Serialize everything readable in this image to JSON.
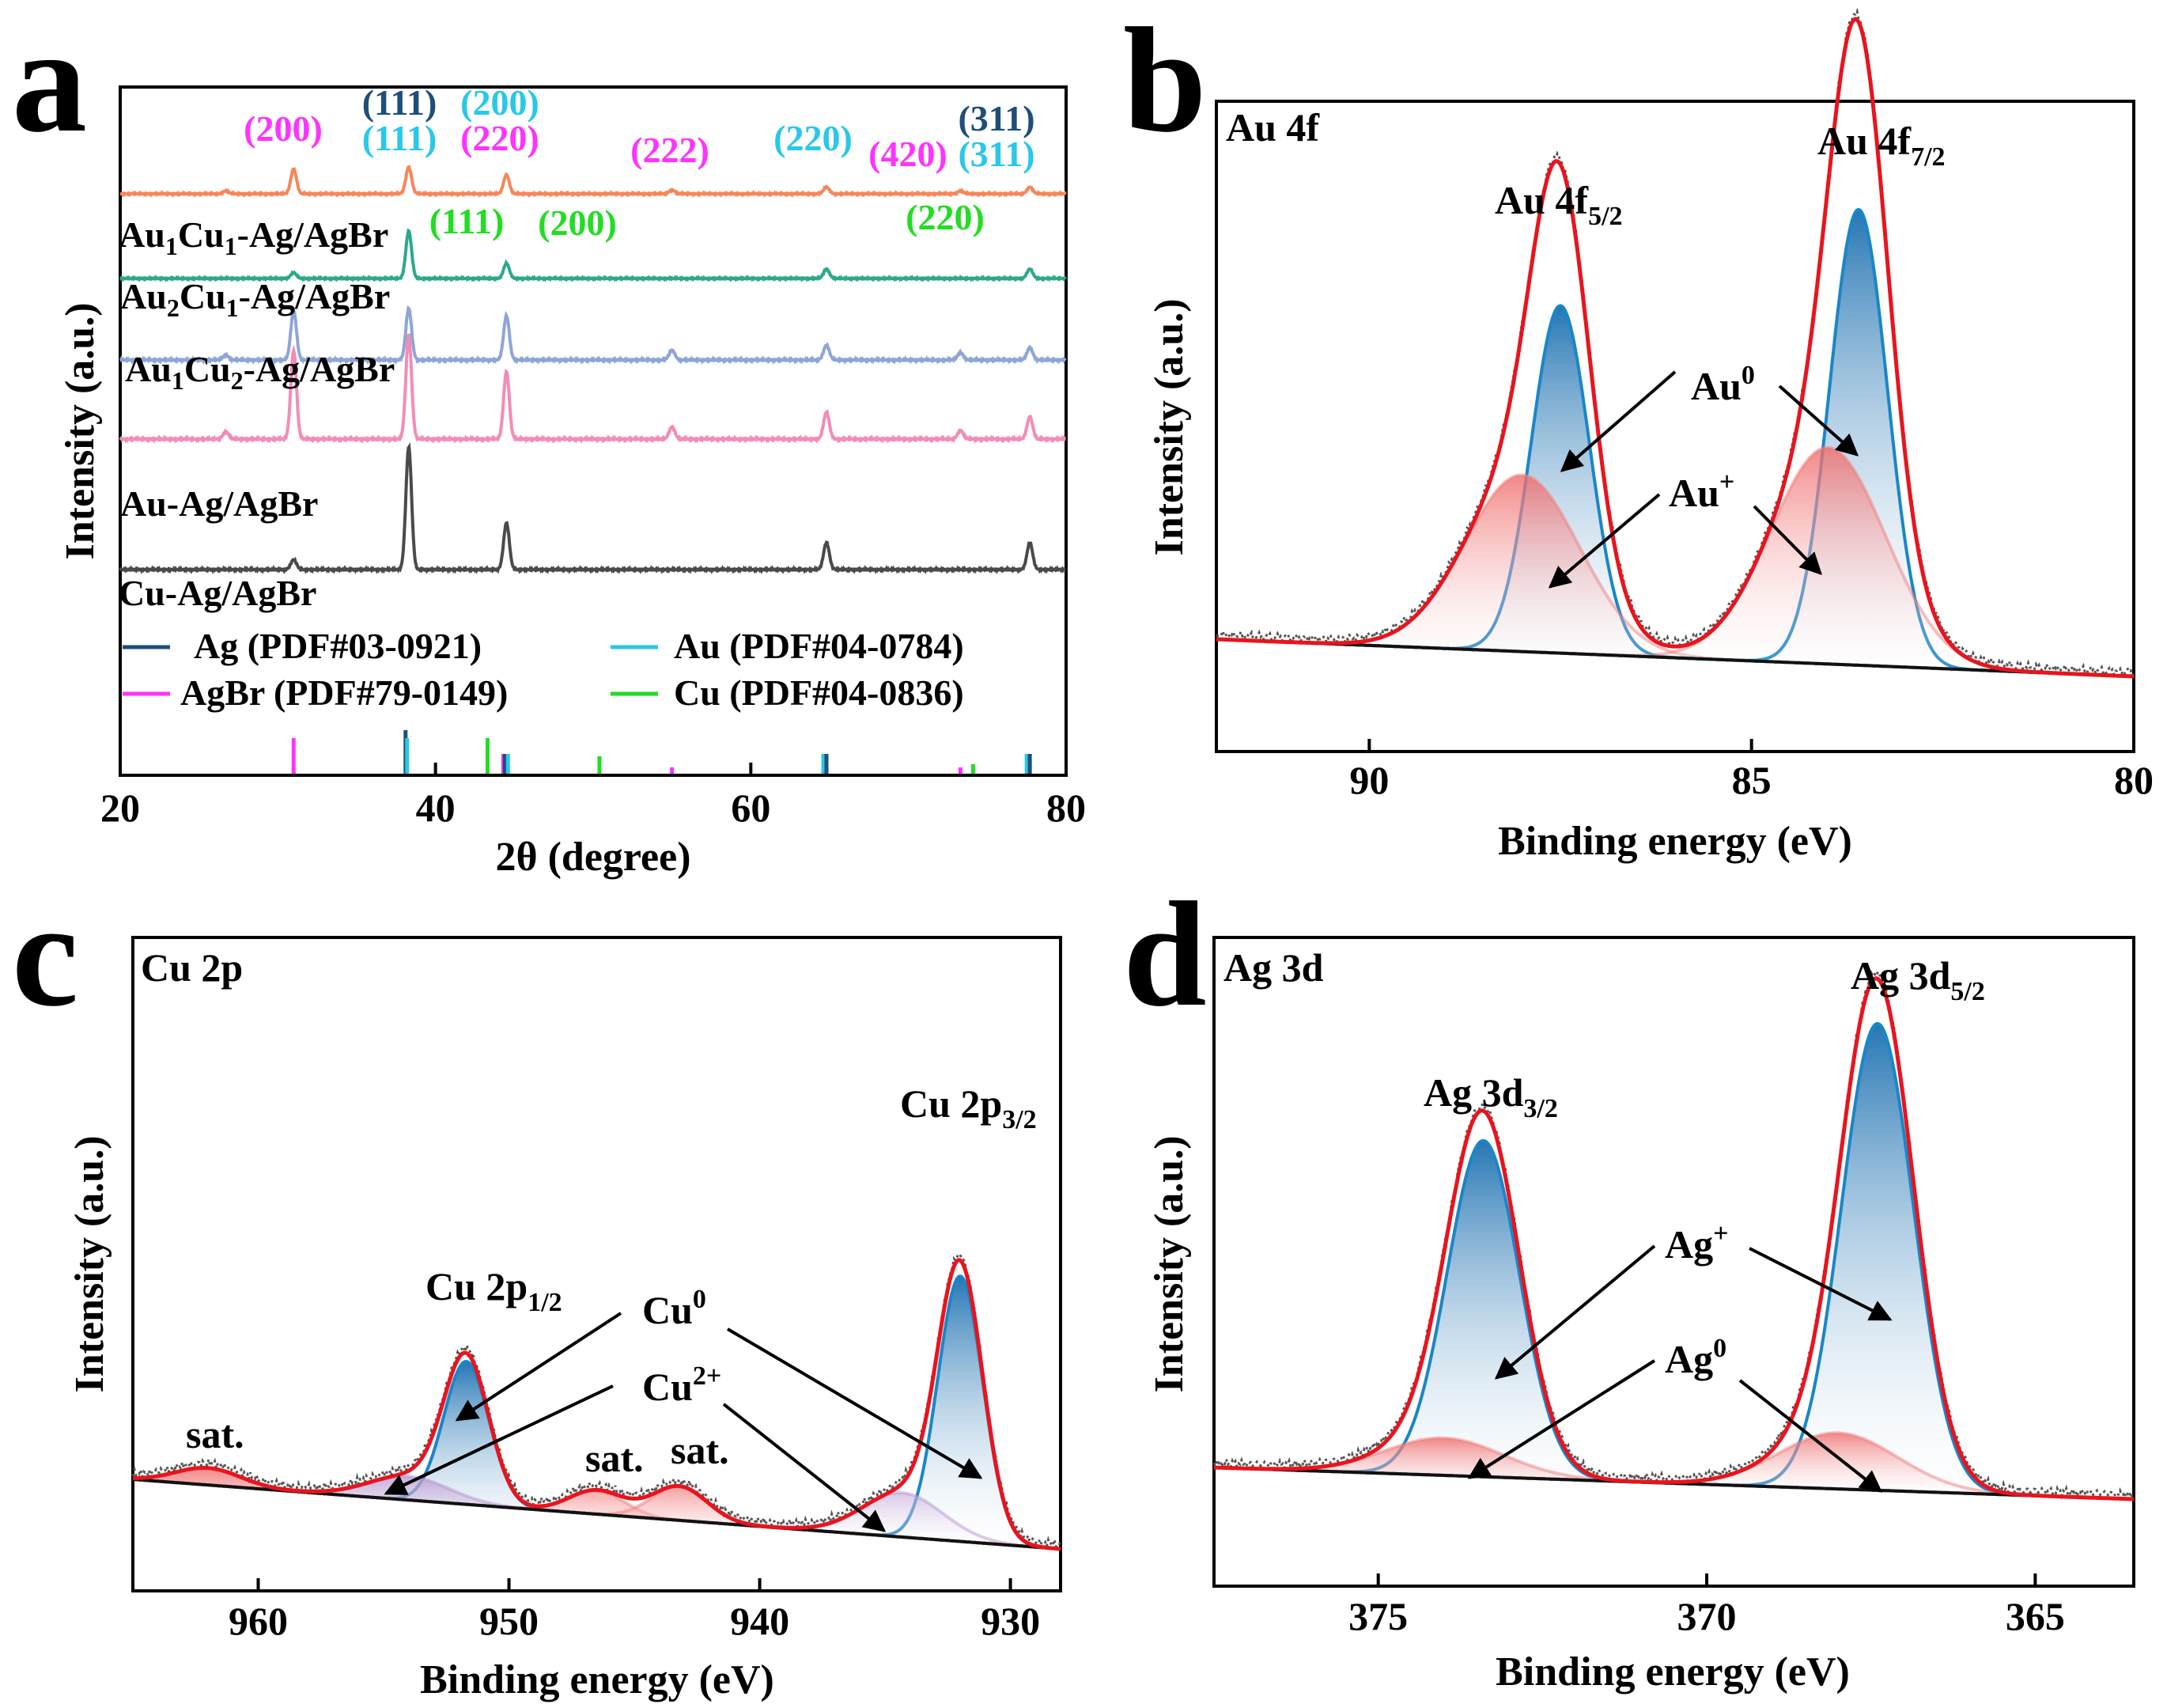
{
  "panels": {
    "a": {
      "letter": "a"
    },
    "b": {
      "letter": "b"
    },
    "c": {
      "letter": "c"
    },
    "d": {
      "letter": "d"
    }
  },
  "chart_data": [
    {
      "panel": "a",
      "type": "line",
      "title": "",
      "xlabel": "2θ (degree)",
      "ylabel": "Intensity (a.u.)",
      "xlim": [
        20,
        80
      ],
      "xticks": [
        "20",
        "40",
        "60",
        "80"
      ],
      "stacked_offsets": true,
      "series": [
        {
          "name": "Cu-Ag/AgBr",
          "color": "#4a4a4a",
          "peaks": [
            [
              31.0,
              0.08
            ],
            [
              38.3,
              1.0
            ],
            [
              44.5,
              0.38
            ],
            [
              64.8,
              0.22
            ],
            [
              77.7,
              0.22
            ]
          ]
        },
        {
          "name": "Au-Ag/AgBr",
          "color": "#f28cb8",
          "peaks": [
            [
              26.7,
              0.06
            ],
            [
              31.0,
              0.72
            ],
            [
              38.3,
              0.85
            ],
            [
              44.5,
              0.55
            ],
            [
              55.0,
              0.1
            ],
            [
              64.8,
              0.22
            ],
            [
              73.3,
              0.07
            ],
            [
              77.7,
              0.18
            ]
          ]
        },
        {
          "name": "Au1Cu2-Ag/AgBr",
          "color": "#8ea6d6",
          "peaks": [
            [
              26.7,
              0.04
            ],
            [
              31.0,
              0.4
            ],
            [
              38.3,
              0.42
            ],
            [
              44.5,
              0.36
            ],
            [
              55.0,
              0.08
            ],
            [
              64.8,
              0.12
            ],
            [
              73.3,
              0.06
            ],
            [
              77.7,
              0.1
            ]
          ]
        },
        {
          "name": "Au2Cu1-Ag/AgBr",
          "color": "#2aaa8a",
          "peaks": [
            [
              31.0,
              0.06
            ],
            [
              38.3,
              0.5
            ],
            [
              44.5,
              0.16
            ],
            [
              64.8,
              0.1
            ],
            [
              77.7,
              0.1
            ]
          ]
        },
        {
          "name": "Au1Cu1-Ag/AgBr",
          "color": "#f5875a",
          "peaks": [
            [
              26.7,
              0.03
            ],
            [
              31.0,
              0.26
            ],
            [
              38.3,
              0.28
            ],
            [
              44.5,
              0.2
            ],
            [
              55.0,
              0.04
            ],
            [
              64.8,
              0.07
            ],
            [
              73.3,
              0.03
            ],
            [
              77.7,
              0.07
            ]
          ]
        }
      ],
      "reference_legend": [
        {
          "label": "Ag (PDF#03-0921)",
          "color": "#1f4e79"
        },
        {
          "label": "Au (PDF#04-0784)",
          "color": "#29c8e8"
        },
        {
          "label": "AgBr (PDF#79-0149)",
          "color": "#ff33ff"
        },
        {
          "label": "Cu (PDF#04-0836)",
          "color": "#22dd22"
        }
      ],
      "reference_lines": [
        {
          "phase": "AgBr",
          "x": 31.0,
          "h": 0.45
        },
        {
          "phase": "Ag",
          "x": 38.1,
          "h": 0.55
        },
        {
          "phase": "Au",
          "x": 38.2,
          "h": 0.45
        },
        {
          "phase": "Cu",
          "x": 43.3,
          "h": 0.45
        },
        {
          "phase": "AgBr",
          "x": 44.3,
          "h": 0.25
        },
        {
          "phase": "Ag",
          "x": 44.4,
          "h": 0.25
        },
        {
          "phase": "Au",
          "x": 44.6,
          "h": 0.25
        },
        {
          "phase": "Cu",
          "x": 50.4,
          "h": 0.22
        },
        {
          "phase": "AgBr",
          "x": 55.0,
          "h": 0.08
        },
        {
          "phase": "Au",
          "x": 64.6,
          "h": 0.25
        },
        {
          "phase": "Ag",
          "x": 64.8,
          "h": 0.25
        },
        {
          "phase": "AgBr",
          "x": 73.3,
          "h": 0.08
        },
        {
          "phase": "Cu",
          "x": 74.1,
          "h": 0.12
        },
        {
          "phase": "Au",
          "x": 77.5,
          "h": 0.25
        },
        {
          "phase": "Ag",
          "x": 77.7,
          "h": 0.25
        }
      ],
      "annotations": [
        {
          "text": "(200)",
          "color": "#ff33ff"
        },
        {
          "text": "(111)",
          "color": "#1f4e79"
        },
        {
          "text": "(111)",
          "color": "#29c8e8"
        },
        {
          "text": "(200)",
          "color": "#29c8e8"
        },
        {
          "text": "(220)",
          "color": "#ff33ff"
        },
        {
          "text": "(222)",
          "color": "#ff33ff"
        },
        {
          "text": "(220)",
          "color": "#29c8e8"
        },
        {
          "text": "(420)",
          "color": "#ff33ff"
        },
        {
          "text": "(311)",
          "color": "#1f4e79"
        },
        {
          "text": "(311)",
          "color": "#29c8e8"
        },
        {
          "text": "(111)",
          "color": "#22dd22"
        },
        {
          "text": "(200)",
          "color": "#22dd22"
        },
        {
          "text": "(220)",
          "color": "#22dd22"
        }
      ]
    },
    {
      "panel": "b",
      "type": "line",
      "title": "Au 4f",
      "xlabel": "Binding energy (eV)",
      "ylabel": "Intensity (a.u.)",
      "xlim": [
        92,
        80
      ],
      "xticks": [
        "90",
        "85",
        "80"
      ],
      "series": [
        {
          "name": "Au0 4f5/2",
          "center": 87.5,
          "height": 0.61,
          "sigma": 0.38,
          "color": "#1a86c8"
        },
        {
          "name": "Au+ 4f5/2",
          "center": 88.0,
          "height": 0.31,
          "sigma": 0.75,
          "color": "#f08080"
        },
        {
          "name": "Au0 4f7/2",
          "center": 83.6,
          "height": 0.8,
          "sigma": 0.38,
          "color": "#1a86c8"
        },
        {
          "name": "Au+ 4f7/2",
          "center": 84.0,
          "height": 0.38,
          "sigma": 0.75,
          "color": "#f08080"
        }
      ],
      "labels": {
        "peak1": "Au 4f5/2",
        "peak2": "Au 4f7/2",
        "comp1": "Au0",
        "comp2": "Au+"
      }
    },
    {
      "panel": "c",
      "type": "line",
      "title": "Cu 2p",
      "xlabel": "Binding energy (eV)",
      "ylabel": "Intensity (a.u.)",
      "xlim": [
        965,
        928
      ],
      "xticks": [
        "960",
        "950",
        "940",
        "930"
      ],
      "series": [
        {
          "name": "Cu0 2p1/2",
          "center": 951.7,
          "height": 0.42,
          "sigma": 0.9,
          "color": "#1a86c8"
        },
        {
          "name": "Cu2+ 2p1/2",
          "center": 954.0,
          "height": 0.07,
          "sigma": 1.6,
          "color": "#b898d0"
        },
        {
          "name": "Cu0 2p3/2",
          "center": 932.0,
          "height": 0.78,
          "sigma": 0.9,
          "color": "#1a86c8"
        },
        {
          "name": "Cu2+ 2p3/2",
          "center": 934.3,
          "height": 0.13,
          "sigma": 1.6,
          "color": "#b898d0"
        },
        {
          "name": "sat.",
          "center": 962.0,
          "height": 0.05,
          "sigma": 1.3,
          "color": "#f08080"
        },
        {
          "name": "sat.",
          "center": 946.5,
          "height": 0.07,
          "sigma": 1.1,
          "color": "#f08080"
        },
        {
          "name": "sat.",
          "center": 943.2,
          "height": 0.1,
          "sigma": 1.1,
          "color": "#f08080"
        }
      ],
      "labels": {
        "peak1": "Cu 2p1/2",
        "peak2": "Cu 2p3/2",
        "comp1": "Cu0",
        "comp2": "Cu2+",
        "sat": "sat."
      }
    },
    {
      "panel": "d",
      "type": "line",
      "title": "Ag 3d",
      "xlabel": "Binding energy (eV)",
      "ylabel": "Intensity (a.u.)",
      "xlim": [
        377.5,
        363.5
      ],
      "xticks": [
        "375",
        "370",
        "365"
      ],
      "series": [
        {
          "name": "Ag+ 3d3/2",
          "center": 373.4,
          "height": 0.72,
          "sigma": 0.55,
          "color": "#1a86c8"
        },
        {
          "name": "Ag0 3d3/2",
          "center": 374.0,
          "height": 0.08,
          "sigma": 0.9,
          "color": "#f08080"
        },
        {
          "name": "Ag+ 3d5/2",
          "center": 367.4,
          "height": 1.0,
          "sigma": 0.55,
          "color": "#1a86c8"
        },
        {
          "name": "Ag0 3d5/2",
          "center": 368.0,
          "height": 0.12,
          "sigma": 0.9,
          "color": "#f08080"
        }
      ],
      "labels": {
        "peak1": "Ag 3d3/2",
        "peak2": "Ag 3d5/2",
        "comp1": "Ag+",
        "comp2": "Ag0"
      }
    }
  ]
}
